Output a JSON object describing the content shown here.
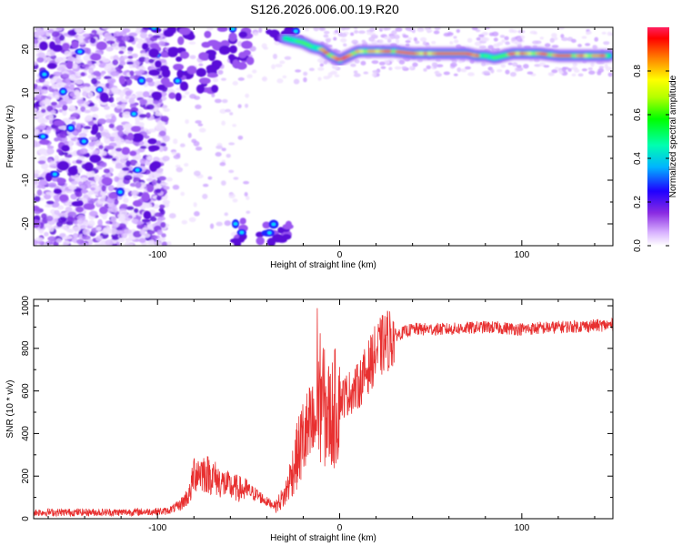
{
  "title": "S126.2026.006.00.19.R20",
  "chart_data": [
    {
      "type": "heatmap",
      "xlabel": "Height of straight line (km)",
      "ylabel": "Frequency (Hz)",
      "xlim": [
        -168,
        150
      ],
      "ylim": [
        -25,
        25
      ],
      "xticks": [
        -100,
        0,
        100
      ],
      "yticks": [
        -20,
        -10,
        0,
        10,
        20
      ],
      "tone_track": {
        "x": [
          -30,
          -25,
          -20,
          -15,
          -10,
          -5,
          0,
          5,
          10,
          20,
          30,
          40,
          50,
          60,
          70,
          75,
          80,
          85,
          90,
          95,
          100,
          110,
          120,
          130,
          140,
          148
        ],
        "y": [
          22.5,
          22,
          21.5,
          20.5,
          20,
          18.5,
          17.5,
          18.5,
          19.5,
          19.5,
          19.5,
          19,
          19,
          19,
          19,
          18.5,
          18.5,
          18,
          18.5,
          19,
          19,
          19,
          18.5,
          18.5,
          18.5,
          18.5
        ]
      },
      "colorbar": {
        "label": "Normalized spectral amplitude",
        "range": [
          0,
          1
        ],
        "ticks": [
          0.0,
          0.2,
          0.4,
          0.6,
          0.8
        ],
        "tick_labels": [
          "0.0",
          "0.2",
          "0.4",
          "0.6",
          "0.8"
        ]
      }
    },
    {
      "type": "line",
      "xlabel": "Height of straight line (km)",
      "ylabel": "SNR (10 * v/v)",
      "xlim": [
        -168,
        150
      ],
      "ylim": [
        0,
        1030
      ],
      "xticks": [
        -100,
        0,
        100
      ],
      "yticks": [
        0,
        200,
        400,
        600,
        800,
        1000
      ],
      "color": "#e83030",
      "envelope": {
        "x": [
          -168,
          -120,
          -95,
          -88,
          -82,
          -80,
          -75,
          -70,
          -65,
          -60,
          -55,
          -50,
          -45,
          -40,
          -35,
          -30,
          -25,
          -20,
          -15,
          -12,
          -10,
          -8,
          -5,
          0,
          5,
          10,
          15,
          20,
          25,
          30,
          40,
          60,
          80,
          100,
          120,
          150
        ],
        "y": [
          30,
          30,
          35,
          60,
          120,
          220,
          220,
          200,
          170,
          150,
          140,
          130,
          110,
          80,
          60,
          110,
          250,
          380,
          420,
          500,
          600,
          500,
          480,
          560,
          590,
          620,
          700,
          780,
          830,
          860,
          890,
          890,
          900,
          890,
          900,
          910
        ]
      }
    }
  ]
}
